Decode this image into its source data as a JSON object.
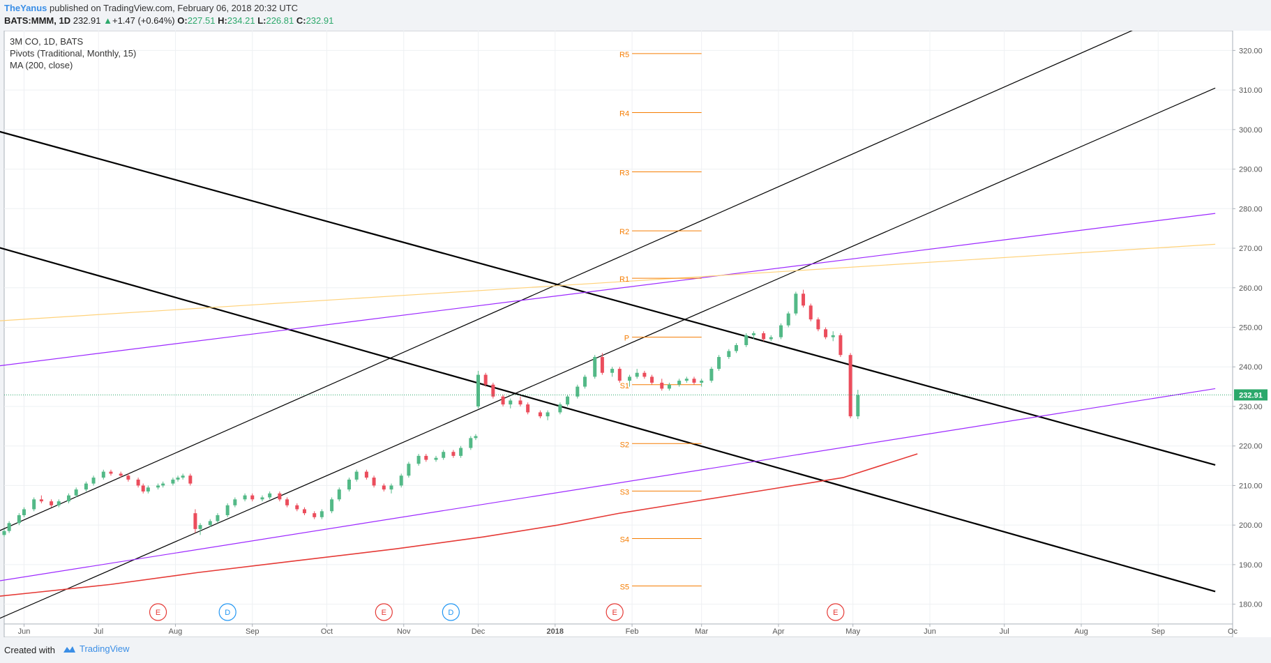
{
  "header": {
    "author": "TheYanus",
    "published": " published on TradingView.com, February 06, 2018 20:32 UTC",
    "symbol": "BATS:MMM, 1D",
    "last": "232.91",
    "change": "+1.47 (+0.64%)",
    "o_label": "O:",
    "o_value": "227.51",
    "h_label": "H:",
    "h_value": "234.21",
    "l_label": "L:",
    "l_value": "226.81",
    "c_label": "C:",
    "c_value": "232.91"
  },
  "legend": [
    "3M CO, 1D, BATS",
    "Pivots (Traditional, Monthly, 15)",
    "MA (200, close)"
  ],
  "footer": {
    "created": "Created with",
    "brand": "TradingView"
  },
  "colors": {
    "up": "#53b987",
    "down": "#eb4d5c",
    "pivot": "#f57c00",
    "ma": "#e53935",
    "purple": "#9c27ff",
    "yellow": "#ffd27a",
    "trend": "#000000",
    "price_label_bg": "#2ca86b",
    "event_earnings": "#e53935",
    "event_dividend": "#2196f3"
  },
  "chart_data": {
    "type": "candlestick",
    "ylim": [
      175,
      325
    ],
    "yticks": [
      "180.00",
      "190.00",
      "200.00",
      "210.00",
      "220.00",
      "230.00",
      "240.00",
      "250.00",
      "260.00",
      "270.00",
      "280.00",
      "290.00",
      "300.00",
      "310.00",
      "320.00"
    ],
    "xlim": [
      "2017-05-24",
      "2018-10-01"
    ],
    "xticks": [
      {
        "date": "2017-06-01",
        "label": "Jun"
      },
      {
        "date": "2017-07-01",
        "label": "Jul"
      },
      {
        "date": "2017-08-01",
        "label": "Aug"
      },
      {
        "date": "2017-09-01",
        "label": "Sep"
      },
      {
        "date": "2017-10-01",
        "label": "Oct"
      },
      {
        "date": "2017-11-01",
        "label": "Nov"
      },
      {
        "date": "2017-12-01",
        "label": "Dec"
      },
      {
        "date": "2018-01-01",
        "label": "2018"
      },
      {
        "date": "2018-02-01",
        "label": "Feb"
      },
      {
        "date": "2018-03-01",
        "label": "Mar"
      },
      {
        "date": "2018-04-01",
        "label": "Apr"
      },
      {
        "date": "2018-05-01",
        "label": "May"
      },
      {
        "date": "2018-06-01",
        "label": "Jun"
      },
      {
        "date": "2018-07-01",
        "label": "Jul"
      },
      {
        "date": "2018-08-01",
        "label": "Aug"
      },
      {
        "date": "2018-09-01",
        "label": "Sep"
      },
      {
        "date": "2018-10-01",
        "label": "Oc"
      }
    ],
    "last_price": 232.91,
    "last_price_label": "232.91",
    "candles": [
      [
        "2017-05-24",
        197.5,
        199,
        197,
        198.5
      ],
      [
        "2017-05-26",
        198.5,
        201,
        198,
        200.5
      ],
      [
        "2017-05-30",
        200.5,
        203,
        200,
        202.5
      ],
      [
        "2017-06-01",
        202.5,
        204.5,
        202,
        204
      ],
      [
        "2017-06-05",
        204,
        207,
        203.5,
        206.5
      ],
      [
        "2017-06-08",
        206.5,
        207.5,
        205.5,
        206
      ],
      [
        "2017-06-12",
        206,
        206.5,
        204.5,
        205
      ],
      [
        "2017-06-15",
        205,
        206.5,
        204.5,
        206
      ],
      [
        "2017-06-19",
        206,
        208,
        205.5,
        207.5
      ],
      [
        "2017-06-22",
        207.5,
        209.5,
        207,
        209
      ],
      [
        "2017-06-26",
        209,
        211,
        208.5,
        210.5
      ],
      [
        "2017-06-29",
        210.5,
        212.5,
        210,
        212
      ],
      [
        "2017-07-03",
        212,
        214,
        211.5,
        213.5
      ],
      [
        "2017-07-06",
        213.5,
        214,
        212.5,
        213
      ],
      [
        "2017-07-10",
        213,
        213.5,
        212,
        212.5
      ],
      [
        "2017-07-13",
        212.5,
        213,
        211,
        211.5
      ],
      [
        "2017-07-17",
        211.5,
        212,
        209.5,
        210
      ],
      [
        "2017-07-19",
        210,
        210.5,
        208,
        208.5
      ],
      [
        "2017-07-21",
        208.5,
        210,
        208,
        209.5
      ],
      [
        "2017-07-25",
        209.5,
        210.5,
        209,
        210
      ],
      [
        "2017-07-27",
        210,
        211,
        209.5,
        210.5
      ],
      [
        "2017-07-31",
        210.5,
        212,
        210,
        211.5
      ],
      [
        "2017-08-02",
        211.5,
        212.5,
        211,
        212
      ],
      [
        "2017-08-04",
        212,
        213,
        211.5,
        212.5
      ],
      [
        "2017-08-07",
        212.5,
        213,
        210,
        210.5
      ],
      [
        "2017-08-09",
        203,
        204,
        198,
        199
      ],
      [
        "2017-08-11",
        199,
        200.5,
        197.5,
        200
      ],
      [
        "2017-08-15",
        200,
        201.5,
        199.5,
        201
      ],
      [
        "2017-08-18",
        201,
        203,
        200.5,
        202.5
      ],
      [
        "2017-08-22",
        202.5,
        205.5,
        202,
        205
      ],
      [
        "2017-08-25",
        205,
        207,
        204.5,
        206.5
      ],
      [
        "2017-08-29",
        206.5,
        208,
        206,
        207.5
      ],
      [
        "2017-09-01",
        207.5,
        208,
        206,
        206.5
      ],
      [
        "2017-09-05",
        206.5,
        207.5,
        206,
        207
      ],
      [
        "2017-09-08",
        207,
        208.5,
        206.5,
        208
      ],
      [
        "2017-09-12",
        208,
        208.5,
        206,
        206.5
      ],
      [
        "2017-09-15",
        206.5,
        207,
        204.5,
        205
      ],
      [
        "2017-09-19",
        205,
        205.5,
        203.5,
        204
      ],
      [
        "2017-09-22",
        204,
        204.5,
        202.5,
        203
      ],
      [
        "2017-09-26",
        203,
        203.5,
        201.5,
        202
      ],
      [
        "2017-09-29",
        202,
        204,
        201.5,
        203.5
      ],
      [
        "2017-10-03",
        203.5,
        207,
        203,
        206.5
      ],
      [
        "2017-10-06",
        206.5,
        209.5,
        206,
        209
      ],
      [
        "2017-10-10",
        209,
        212,
        208.5,
        211.5
      ],
      [
        "2017-10-13",
        211.5,
        214,
        211,
        213.5
      ],
      [
        "2017-10-17",
        213.5,
        214,
        211.5,
        212
      ],
      [
        "2017-10-20",
        212,
        212.5,
        209.5,
        210
      ],
      [
        "2017-10-24",
        210,
        210.5,
        208.5,
        209
      ],
      [
        "2017-10-27",
        209,
        210.5,
        208,
        210
      ],
      [
        "2017-10-31",
        210,
        213,
        209.5,
        212.5
      ],
      [
        "2017-11-03",
        212.5,
        216,
        212,
        215.5
      ],
      [
        "2017-11-07",
        215.5,
        218,
        215,
        217.5
      ],
      [
        "2017-11-10",
        217.5,
        218,
        216,
        216.5
      ],
      [
        "2017-11-14",
        216.5,
        217.5,
        216,
        217
      ],
      [
        "2017-11-17",
        217,
        219,
        216.5,
        218.5
      ],
      [
        "2017-11-21",
        218.5,
        219,
        217,
        217.5
      ],
      [
        "2017-11-24",
        217.5,
        220,
        217,
        219.5
      ],
      [
        "2017-11-28",
        219.5,
        222.5,
        219,
        222
      ],
      [
        "2017-11-30",
        222,
        223,
        221.5,
        222.5
      ],
      [
        "2017-12-01",
        230,
        239,
        229.5,
        238
      ],
      [
        "2017-12-04",
        238,
        238.5,
        235,
        235.5
      ],
      [
        "2017-12-07",
        235.5,
        236,
        232,
        232.5
      ],
      [
        "2017-12-11",
        232.5,
        233,
        230,
        230.5
      ],
      [
        "2017-12-14",
        230.5,
        232,
        229.5,
        231.5
      ],
      [
        "2017-12-18",
        231.5,
        232.5,
        230,
        230.5
      ],
      [
        "2017-12-21",
        230.5,
        231,
        228,
        228.5
      ],
      [
        "2017-12-26",
        228.5,
        229,
        227,
        227.5
      ],
      [
        "2017-12-29",
        227.5,
        229,
        226.5,
        228.5
      ],
      [
        "2018-01-03",
        228.5,
        231,
        228,
        230.5
      ],
      [
        "2018-01-06",
        230.5,
        233,
        230,
        232.5
      ],
      [
        "2018-01-10",
        232.5,
        235.5,
        232,
        235
      ],
      [
        "2018-01-13",
        235,
        238,
        234.5,
        237.5
      ],
      [
        "2018-01-17",
        237.5,
        243,
        237,
        242.5
      ],
      [
        "2018-01-20",
        242.5,
        243.5,
        238,
        238.5
      ],
      [
        "2018-01-24",
        238.5,
        240,
        237.5,
        239.5
      ],
      [
        "2018-01-27",
        239.5,
        240,
        236,
        236.5
      ],
      [
        "2018-01-31",
        236.5,
        238,
        235,
        237.5
      ],
      [
        "2018-02-03",
        237.5,
        239.5,
        237,
        238.5
      ],
      [
        "2018-02-06",
        238.5,
        239,
        237,
        237.5
      ],
      [
        "2018-02-09",
        237.5,
        238,
        235.5,
        236
      ],
      [
        "2018-02-13",
        236,
        237,
        234,
        234.5
      ],
      [
        "2018-02-16",
        234.5,
        236,
        234,
        235.5
      ],
      [
        "2018-02-20",
        235.5,
        237,
        235,
        236.5
      ],
      [
        "2018-02-23",
        236.5,
        237.5,
        236,
        237
      ],
      [
        "2018-02-26",
        237,
        237.5,
        235.5,
        236
      ],
      [
        "2018-03-01",
        236,
        237,
        235,
        236.5
      ],
      [
        "2018-03-05",
        236.5,
        240,
        236,
        239.5
      ],
      [
        "2018-03-08",
        239.5,
        243,
        239,
        242.5
      ],
      [
        "2018-03-12",
        242.5,
        244.5,
        242,
        244
      ],
      [
        "2018-03-15",
        244,
        246,
        243.5,
        245.5
      ],
      [
        "2018-03-19",
        245.5,
        248.5,
        245,
        248
      ],
      [
        "2018-03-22",
        248,
        249,
        247,
        248.5
      ],
      [
        "2018-03-26",
        248.5,
        249,
        246.5,
        247
      ],
      [
        "2018-03-29",
        247,
        248,
        246.5,
        247.5
      ],
      [
        "2018-04-02",
        247.5,
        251,
        247,
        250.5
      ],
      [
        "2018-04-05",
        250.5,
        254,
        250,
        253.5
      ],
      [
        "2018-04-08",
        253.5,
        259,
        253,
        258.5
      ],
      [
        "2018-04-11",
        258.5,
        259.5,
        255,
        255.5
      ],
      [
        "2018-04-14",
        255.5,
        256,
        251.5,
        252
      ],
      [
        "2018-04-17",
        252,
        252.5,
        249,
        249.5
      ],
      [
        "2018-04-20",
        249.5,
        250,
        247,
        247.5
      ],
      [
        "2018-04-23",
        247.5,
        249,
        246.5,
        248
      ],
      [
        "2018-04-26",
        248,
        248.5,
        242.5,
        243
      ],
      [
        "2018-04-30",
        243,
        243.5,
        227,
        227.5
      ],
      [
        "2018-05-03",
        227.5,
        234.2,
        226.8,
        232.9
      ]
    ],
    "ma_200": [
      [
        -21,
        181.3
      ],
      [
        5,
        183
      ],
      [
        35,
        185
      ],
      [
        70,
        188
      ],
      [
        110,
        191
      ],
      [
        150,
        194
      ],
      [
        185,
        197
      ],
      [
        215,
        200
      ],
      [
        240,
        203
      ],
      [
        270,
        206
      ],
      [
        300,
        209
      ],
      [
        330,
        212
      ],
      [
        345,
        215
      ],
      [
        360,
        218
      ]
    ],
    "pivots": {
      "x_from": "2018-02-01",
      "x_to": "2018-03-01",
      "levels": [
        {
          "name": "R5",
          "value": 319.2
        },
        {
          "name": "R4",
          "value": 304.3
        },
        {
          "name": "R3",
          "value": 289.3
        },
        {
          "name": "R2",
          "value": 274.4
        },
        {
          "name": "R1",
          "value": 262.4
        },
        {
          "name": "P",
          "value": 247.5
        },
        {
          "name": "S1",
          "value": 235.5
        },
        {
          "name": "S2",
          "value": 220.6
        },
        {
          "name": "S3",
          "value": 208.6
        },
        {
          "name": "S4",
          "value": 196.6
        },
        {
          "name": "S5",
          "value": 184.6
        }
      ]
    },
    "trendlines": [
      {
        "kind": "thick",
        "color": "#000000",
        "points": [
          [
            -21,
            301.4
          ],
          [
            480,
            215.2
          ]
        ]
      },
      {
        "kind": "thick",
        "color": "#000000",
        "points": [
          [
            -21,
            272.1
          ],
          [
            480,
            183.2
          ]
        ]
      },
      {
        "kind": "thin",
        "color": "#000000",
        "points": [
          [
            -21,
            195.5
          ],
          [
            450,
            326
          ]
        ]
      },
      {
        "kind": "thin",
        "color": "#000000",
        "points": [
          [
            -15,
            175
          ],
          [
            480,
            310.5
          ]
        ]
      },
      {
        "kind": "thin",
        "color": "#9c27ff",
        "points": [
          [
            -21,
            239.4
          ],
          [
            480,
            278.8
          ]
        ]
      },
      {
        "kind": "thin",
        "color": "#9c27ff",
        "points": [
          [
            -21,
            184.8
          ],
          [
            480,
            234.5
          ]
        ]
      },
      {
        "kind": "thin",
        "color": "#ffd27a",
        "points": [
          [
            -21,
            251.2
          ],
          [
            480,
            271
          ]
        ]
      }
    ],
    "events": [
      {
        "date": "2017-07-25",
        "label": "E",
        "type": "earnings"
      },
      {
        "date": "2017-08-22",
        "label": "D",
        "type": "dividend"
      },
      {
        "date": "2017-10-24",
        "label": "E",
        "type": "earnings"
      },
      {
        "date": "2017-11-20",
        "label": "D",
        "type": "dividend"
      },
      {
        "date": "2018-01-25",
        "label": "E",
        "type": "earnings"
      },
      {
        "date": "2018-04-24",
        "label": "E",
        "type": "earnings"
      }
    ]
  }
}
